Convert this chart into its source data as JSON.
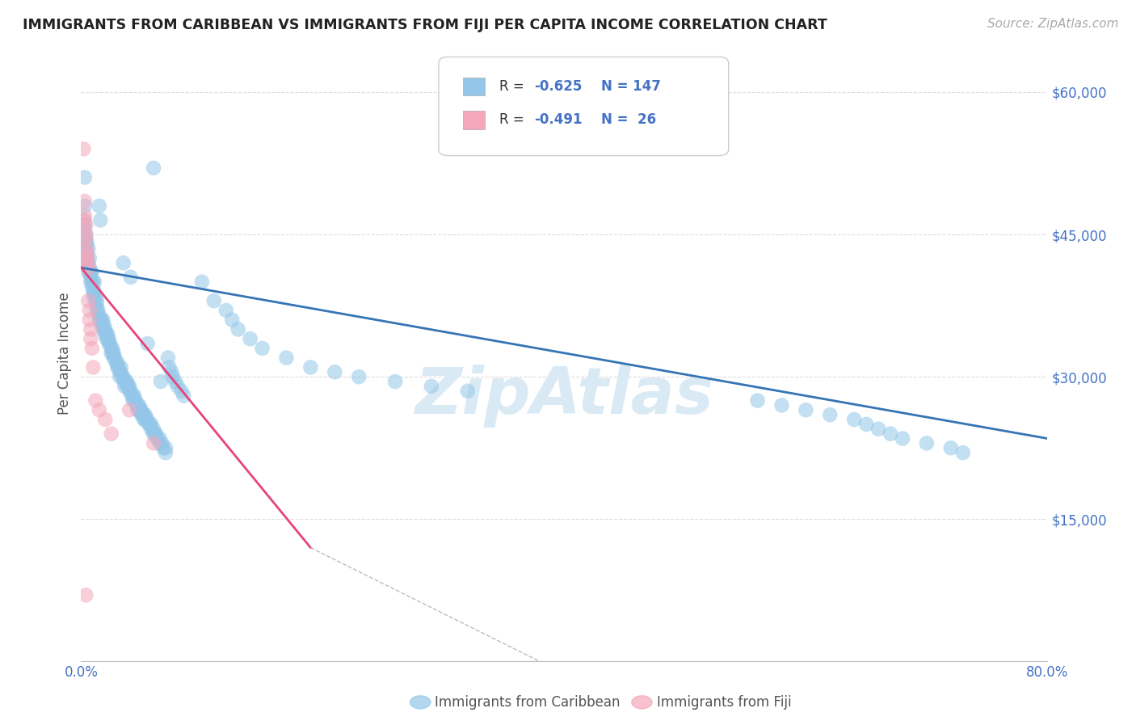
{
  "title": "IMMIGRANTS FROM CARIBBEAN VS IMMIGRANTS FROM FIJI PER CAPITA INCOME CORRELATION CHART",
  "source": "Source: ZipAtlas.com",
  "ylabel": "Per Capita Income",
  "xlim": [
    0.0,
    0.8
  ],
  "ylim": [
    0,
    65000
  ],
  "yticks": [
    0,
    15000,
    30000,
    45000,
    60000
  ],
  "xticks": [
    0.0,
    0.1,
    0.2,
    0.3,
    0.4,
    0.5,
    0.6,
    0.7,
    0.8
  ],
  "caribbean_color": "#93c6e8",
  "fiji_color": "#f4a7bb",
  "trend_blue_color": "#3574b5",
  "trend_pink_color": "#e8437a",
  "trend_gray_color": "#bbbbbb",
  "watermark": "ZipAtlas",
  "watermark_color": "#daeaf5",
  "background_color": "#ffffff",
  "tick_color": "#4472c4",
  "grid_color": "#dddddd",
  "legend_text_color": "#4472c4",
  "legend_label_color": "#555555",
  "caribbean_scatter": [
    [
      0.002,
      46500
    ],
    [
      0.003,
      51000
    ],
    [
      0.003,
      48000
    ],
    [
      0.003,
      46000
    ],
    [
      0.003,
      45500
    ],
    [
      0.004,
      45000
    ],
    [
      0.004,
      44500
    ],
    [
      0.004,
      44000
    ],
    [
      0.004,
      43500
    ],
    [
      0.005,
      44000
    ],
    [
      0.005,
      43000
    ],
    [
      0.005,
      42500
    ],
    [
      0.005,
      42000
    ],
    [
      0.006,
      43500
    ],
    [
      0.006,
      42000
    ],
    [
      0.006,
      41000
    ],
    [
      0.007,
      42500
    ],
    [
      0.007,
      41500
    ],
    [
      0.007,
      41000
    ],
    [
      0.008,
      41000
    ],
    [
      0.008,
      40500
    ],
    [
      0.008,
      40000
    ],
    [
      0.009,
      41000
    ],
    [
      0.009,
      40000
    ],
    [
      0.009,
      39500
    ],
    [
      0.01,
      40000
    ],
    [
      0.01,
      39000
    ],
    [
      0.01,
      38500
    ],
    [
      0.011,
      40000
    ],
    [
      0.011,
      39000
    ],
    [
      0.012,
      38500
    ],
    [
      0.012,
      38000
    ],
    [
      0.013,
      38000
    ],
    [
      0.013,
      37500
    ],
    [
      0.013,
      37000
    ],
    [
      0.014,
      37000
    ],
    [
      0.015,
      36500
    ],
    [
      0.015,
      36000
    ],
    [
      0.015,
      48000
    ],
    [
      0.016,
      36000
    ],
    [
      0.016,
      46500
    ],
    [
      0.017,
      36000
    ],
    [
      0.017,
      35500
    ],
    [
      0.018,
      36000
    ],
    [
      0.018,
      35000
    ],
    [
      0.019,
      35500
    ],
    [
      0.019,
      35000
    ],
    [
      0.02,
      35000
    ],
    [
      0.02,
      34500
    ],
    [
      0.021,
      34500
    ],
    [
      0.021,
      34000
    ],
    [
      0.022,
      34500
    ],
    [
      0.022,
      34000
    ],
    [
      0.023,
      34000
    ],
    [
      0.023,
      33500
    ],
    [
      0.024,
      33500
    ],
    [
      0.025,
      33000
    ],
    [
      0.025,
      32500
    ],
    [
      0.026,
      33000
    ],
    [
      0.026,
      32500
    ],
    [
      0.027,
      32500
    ],
    [
      0.027,
      32000
    ],
    [
      0.028,
      32000
    ],
    [
      0.029,
      31500
    ],
    [
      0.03,
      31500
    ],
    [
      0.03,
      31000
    ],
    [
      0.031,
      31000
    ],
    [
      0.032,
      30500
    ],
    [
      0.032,
      30000
    ],
    [
      0.033,
      31000
    ],
    [
      0.033,
      30500
    ],
    [
      0.034,
      30000
    ],
    [
      0.035,
      30000
    ],
    [
      0.035,
      42000
    ],
    [
      0.036,
      29500
    ],
    [
      0.036,
      29000
    ],
    [
      0.037,
      29500
    ],
    [
      0.038,
      29500
    ],
    [
      0.038,
      29000
    ],
    [
      0.039,
      29000
    ],
    [
      0.04,
      29000
    ],
    [
      0.04,
      28500
    ],
    [
      0.041,
      28500
    ],
    [
      0.041,
      40500
    ],
    [
      0.042,
      28000
    ],
    [
      0.043,
      28000
    ],
    [
      0.043,
      27500
    ],
    [
      0.044,
      28000
    ],
    [
      0.044,
      27500
    ],
    [
      0.045,
      27500
    ],
    [
      0.046,
      27000
    ],
    [
      0.047,
      27000
    ],
    [
      0.047,
      26500
    ],
    [
      0.048,
      26500
    ],
    [
      0.048,
      27000
    ],
    [
      0.049,
      26500
    ],
    [
      0.05,
      26500
    ],
    [
      0.05,
      26000
    ],
    [
      0.051,
      26000
    ],
    [
      0.052,
      26000
    ],
    [
      0.052,
      25500
    ],
    [
      0.053,
      26000
    ],
    [
      0.053,
      25500
    ],
    [
      0.054,
      25500
    ],
    [
      0.055,
      25500
    ],
    [
      0.055,
      33500
    ],
    [
      0.056,
      25000
    ],
    [
      0.057,
      25000
    ],
    [
      0.058,
      25000
    ],
    [
      0.058,
      24500
    ],
    [
      0.06,
      24500
    ],
    [
      0.06,
      24000
    ],
    [
      0.061,
      24000
    ],
    [
      0.062,
      24000
    ],
    [
      0.063,
      23500
    ],
    [
      0.065,
      23500
    ],
    [
      0.065,
      23000
    ],
    [
      0.066,
      29500
    ],
    [
      0.067,
      23000
    ],
    [
      0.068,
      22500
    ],
    [
      0.07,
      22500
    ],
    [
      0.07,
      22000
    ],
    [
      0.072,
      32000
    ],
    [
      0.073,
      31000
    ],
    [
      0.075,
      30500
    ],
    [
      0.076,
      30000
    ],
    [
      0.078,
      29500
    ],
    [
      0.08,
      29000
    ],
    [
      0.083,
      28500
    ],
    [
      0.085,
      28000
    ],
    [
      0.06,
      52000
    ],
    [
      0.1,
      40000
    ],
    [
      0.11,
      38000
    ],
    [
      0.12,
      37000
    ],
    [
      0.125,
      36000
    ],
    [
      0.13,
      35000
    ],
    [
      0.14,
      34000
    ],
    [
      0.15,
      33000
    ],
    [
      0.17,
      32000
    ],
    [
      0.19,
      31000
    ],
    [
      0.21,
      30500
    ],
    [
      0.23,
      30000
    ],
    [
      0.26,
      29500
    ],
    [
      0.29,
      29000
    ],
    [
      0.32,
      28500
    ],
    [
      0.56,
      27500
    ],
    [
      0.58,
      27000
    ],
    [
      0.6,
      26500
    ],
    [
      0.62,
      26000
    ],
    [
      0.64,
      25500
    ],
    [
      0.65,
      25000
    ],
    [
      0.66,
      24500
    ],
    [
      0.67,
      24000
    ],
    [
      0.68,
      23500
    ],
    [
      0.7,
      23000
    ],
    [
      0.72,
      22500
    ],
    [
      0.73,
      22000
    ]
  ],
  "fiji_scatter": [
    [
      0.002,
      54000
    ],
    [
      0.003,
      48500
    ],
    [
      0.003,
      47000
    ],
    [
      0.003,
      46500
    ],
    [
      0.004,
      46000
    ],
    [
      0.004,
      45000
    ],
    [
      0.004,
      44500
    ],
    [
      0.004,
      43500
    ],
    [
      0.005,
      43000
    ],
    [
      0.005,
      42500
    ],
    [
      0.005,
      42000
    ],
    [
      0.006,
      41500
    ],
    [
      0.006,
      38000
    ],
    [
      0.007,
      37000
    ],
    [
      0.007,
      36000
    ],
    [
      0.008,
      35000
    ],
    [
      0.008,
      34000
    ],
    [
      0.009,
      33000
    ],
    [
      0.01,
      31000
    ],
    [
      0.012,
      27500
    ],
    [
      0.015,
      26500
    ],
    [
      0.02,
      25500
    ],
    [
      0.025,
      24000
    ],
    [
      0.04,
      26500
    ],
    [
      0.06,
      23000
    ],
    [
      0.004,
      7000
    ]
  ],
  "blue_line_x1": 0.0,
  "blue_line_y1": 41500,
  "blue_line_x2": 0.8,
  "blue_line_y2": 23500,
  "pink_line_x1": 0.0,
  "pink_line_y1": 41500,
  "pink_line_x2": 0.19,
  "pink_line_y2": 12000,
  "gray_line_x1": 0.19,
  "gray_line_y1": 12000,
  "gray_line_x2": 0.38,
  "gray_line_y2": 0
}
